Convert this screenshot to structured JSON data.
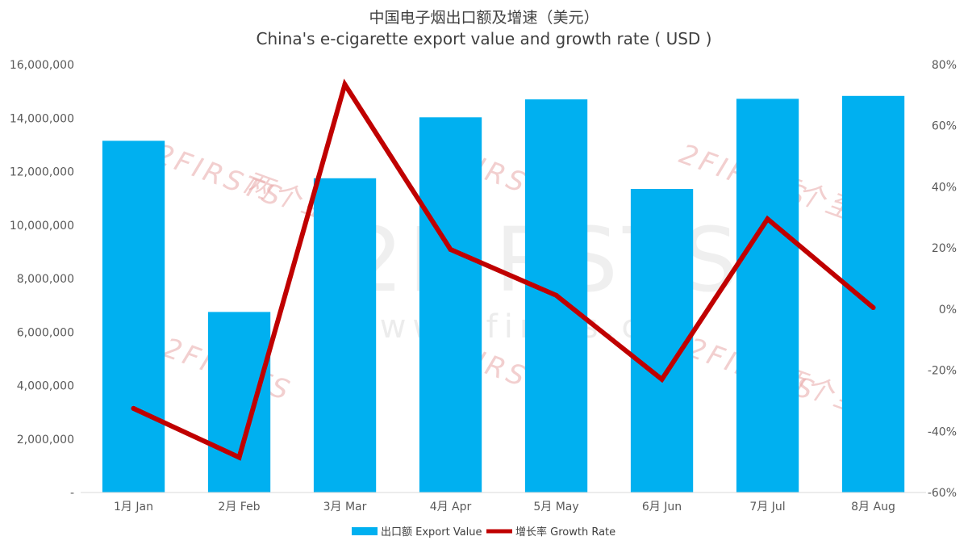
{
  "chart_data": {
    "type": "bar",
    "title": "中国电子烟出口额及增速（美元）",
    "subtitle": "China's e-cigarette export value and growth rate ( USD )",
    "categories": [
      "1月 Jan",
      "2月 Feb",
      "3月 Mar",
      "4月 Apr",
      "5月 May",
      "6月 Jun",
      "7月 Jul",
      "8月 Aug"
    ],
    "series": [
      {
        "name": "出口额 Export Value",
        "type": "bar",
        "axis": "left",
        "color": "#00b0f0",
        "values": [
          13150000,
          6750000,
          11750000,
          14030000,
          14700000,
          11350000,
          14720000,
          14830000
        ]
      },
      {
        "name": "增长率 Growth Rate",
        "type": "line",
        "axis": "right",
        "color": "#c00000",
        "values": [
          -32.5,
          -48.5,
          73.5,
          19.5,
          4.5,
          -23,
          29.5,
          0.5
        ]
      }
    ],
    "left_axis": {
      "ylim": [
        0,
        16000000
      ],
      "ticks": [
        0,
        2000000,
        4000000,
        6000000,
        8000000,
        10000000,
        12000000,
        14000000,
        16000000
      ],
      "tick_labels": [
        "-",
        "2,000,000",
        "4,000,000",
        "6,000,000",
        "8,000,000",
        "10,000,000",
        "12,000,000",
        "14,000,000",
        "16,000,000"
      ]
    },
    "right_axis": {
      "ylim": [
        -60,
        80
      ],
      "ticks": [
        -60,
        -40,
        -20,
        0,
        20,
        40,
        60,
        80
      ],
      "tick_labels": [
        "-60%",
        "-40%",
        "-20%",
        "0%",
        "20%",
        "40%",
        "60%",
        "80%"
      ]
    },
    "grid": false,
    "legend": {
      "placement": "bottom"
    }
  },
  "watermark": {
    "brand": "2FIRSTS",
    "brand_cn": "两个至上",
    "url": "www.2firsts.cn"
  }
}
